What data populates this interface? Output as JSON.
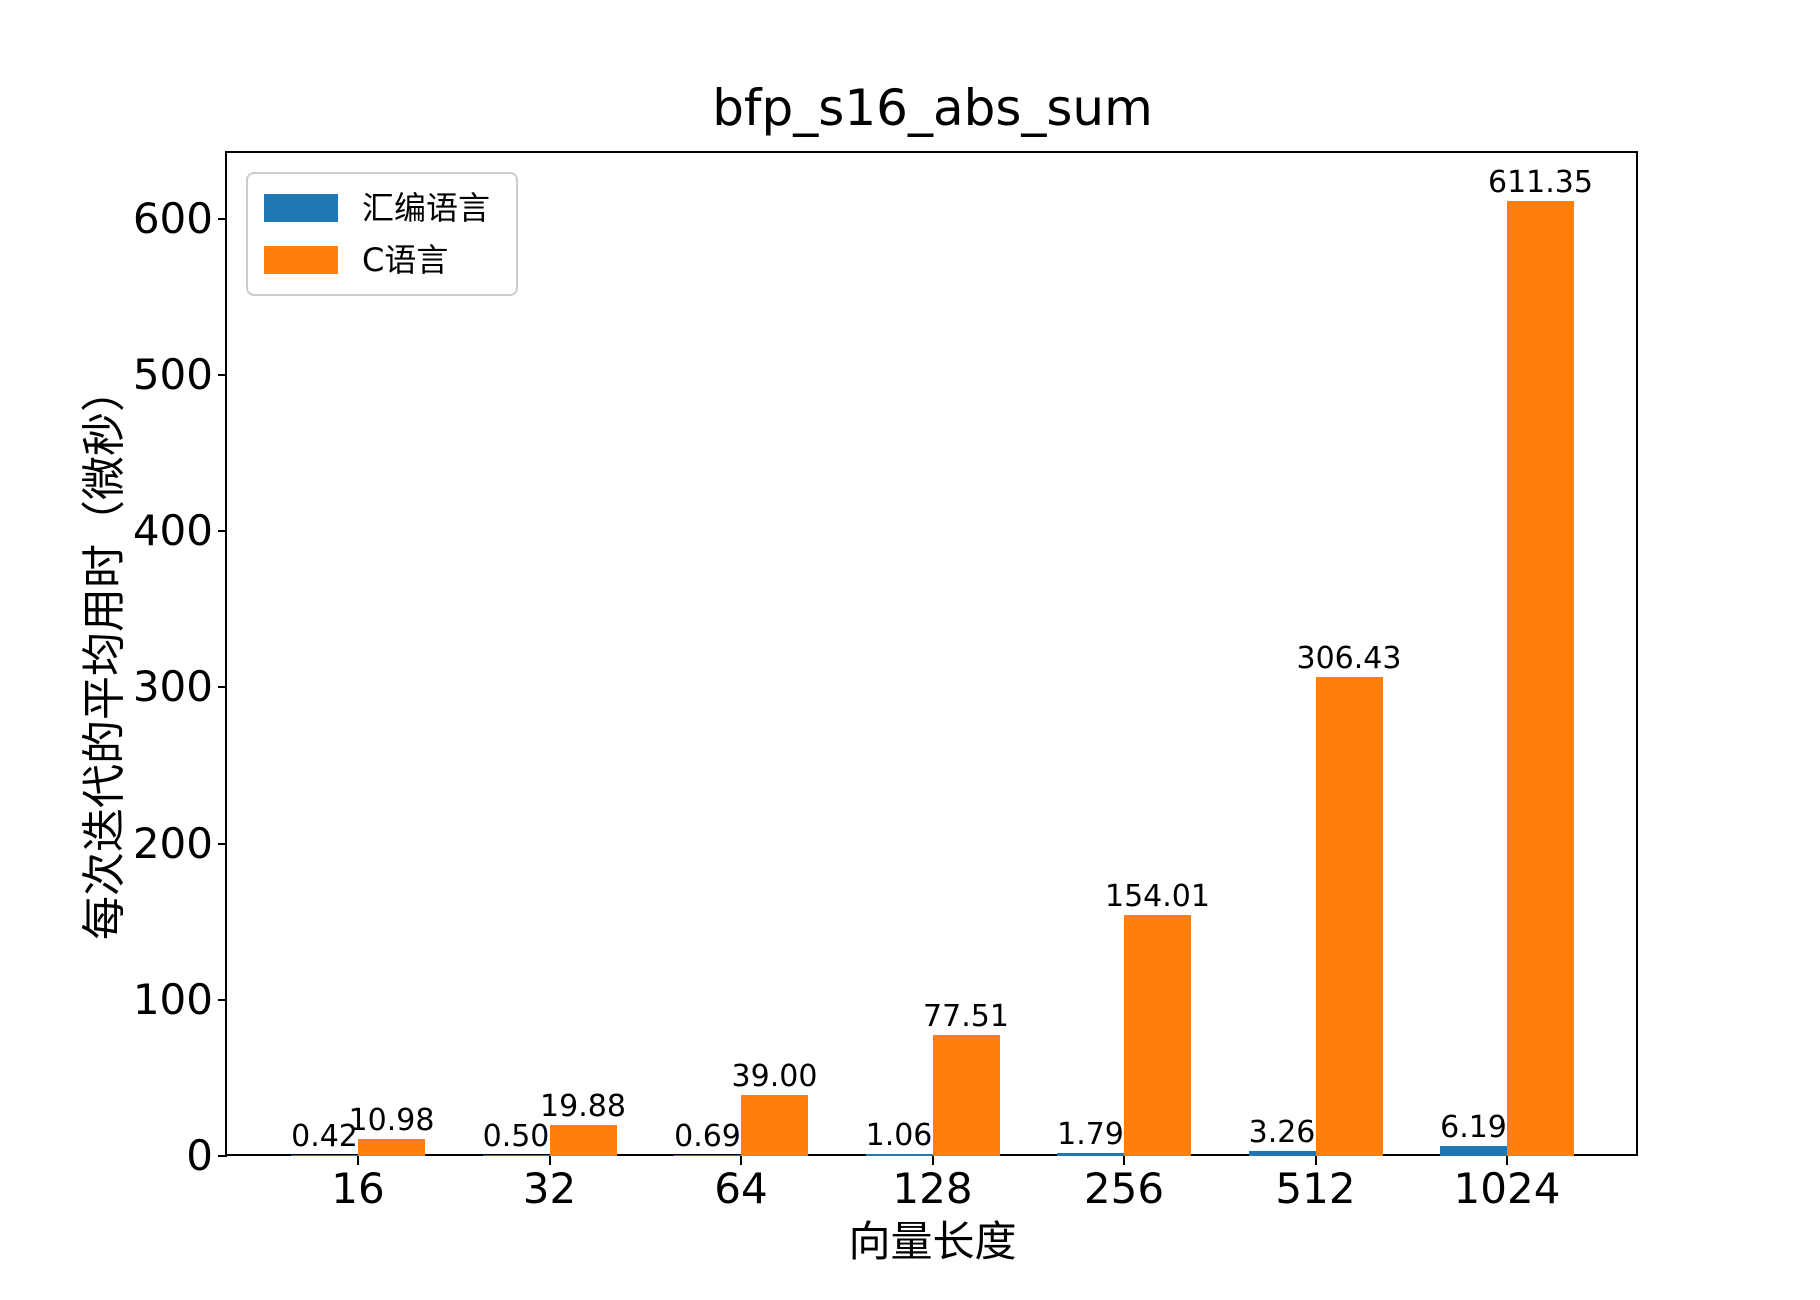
{
  "chart_data": {
    "type": "bar",
    "title": "bfp_s16_abs_sum",
    "xlabel": "向量长度",
    "ylabel": "每次迭代的平均用时（微秒）",
    "categories": [
      "16",
      "32",
      "64",
      "128",
      "256",
      "512",
      "1024"
    ],
    "series": [
      {
        "key": "assembly",
        "name": "汇编语言",
        "color": "#1f77b4",
        "values": [
          0.42,
          0.5,
          0.69,
          1.06,
          1.79,
          3.26,
          6.19
        ]
      },
      {
        "key": "c",
        "name": "C语言",
        "color": "#ff7f0e",
        "values": [
          10.98,
          19.88,
          39.0,
          77.51,
          154.01,
          306.43,
          611.35
        ]
      }
    ],
    "value_label_format": "2dp",
    "yticks": [
      0,
      100,
      200,
      300,
      400,
      500,
      600
    ],
    "ylim": [
      0,
      642
    ],
    "grid": false,
    "legend_position": "upper-left",
    "colors": {
      "axis": "#000000",
      "text": "#000000",
      "legend_border": "#cccccc"
    }
  }
}
